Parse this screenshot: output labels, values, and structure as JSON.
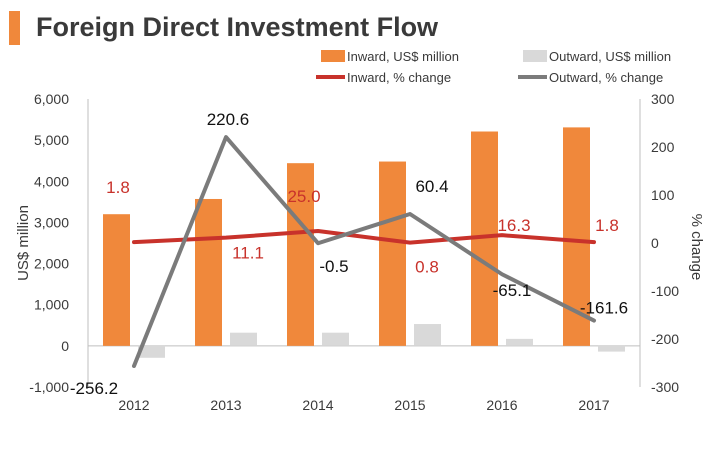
{
  "page": {
    "title": "Foreign Direct Investment Flow"
  },
  "colors": {
    "accent": "#f0883b",
    "inward_bar": "#f0883b",
    "outward_bar": "#d9d9d9",
    "inward_line": "#c8322b",
    "outward_line": "#7b7b7b",
    "axis_text": "#3a3a3a",
    "grid_axis": "#bfbfbf"
  },
  "chart_data": {
    "type": "bar",
    "title": "Foreign Direct Investment Flow",
    "categories": [
      "2012",
      "2013",
      "2014",
      "2015",
      "2016",
      "2017"
    ],
    "series": [
      {
        "name": "Inward, US$ million",
        "kind": "bar",
        "axis": "left",
        "values": [
          3200,
          3570,
          4440,
          4480,
          5210,
          5310
        ]
      },
      {
        "name": "Outward, US$ million",
        "kind": "bar",
        "axis": "left",
        "values": [
          -290,
          320,
          320,
          530,
          170,
          -140
        ]
      },
      {
        "name": "Inward, % change",
        "kind": "line",
        "axis": "right",
        "values": [
          1.8,
          11.1,
          25.0,
          0.8,
          16.3,
          1.8
        ],
        "labels": [
          "1.8",
          "11.1",
          "25.0",
          "0.8",
          "16.3",
          "1.8"
        ]
      },
      {
        "name": "Outward, % change",
        "kind": "line",
        "axis": "right",
        "values": [
          -256.2,
          220.6,
          -0.5,
          60.4,
          -65.1,
          -161.6
        ],
        "labels": [
          "-256.2",
          "220.6",
          "-0.5",
          "60.4",
          "-65.1",
          "-161.6"
        ]
      }
    ],
    "ylabel": "US$ million",
    "ylabel_right": "% change",
    "ylim": [
      -1000,
      6000
    ],
    "ylim_right": [
      -300,
      300
    ],
    "yticks": [
      -1000,
      0,
      1000,
      2000,
      3000,
      4000,
      5000,
      6000
    ],
    "yticks_labels": [
      "-1,000",
      "0",
      "1,000",
      "2,000",
      "3,000",
      "4,000",
      "5,000",
      "6,000"
    ],
    "yticks_right": [
      -300,
      -200,
      -100,
      0,
      100,
      200,
      300
    ],
    "yticks_right_labels": [
      "-300",
      "-200",
      "-100",
      "0",
      "100",
      "200",
      "300"
    ],
    "grid": false,
    "legend_position": "top-right"
  }
}
